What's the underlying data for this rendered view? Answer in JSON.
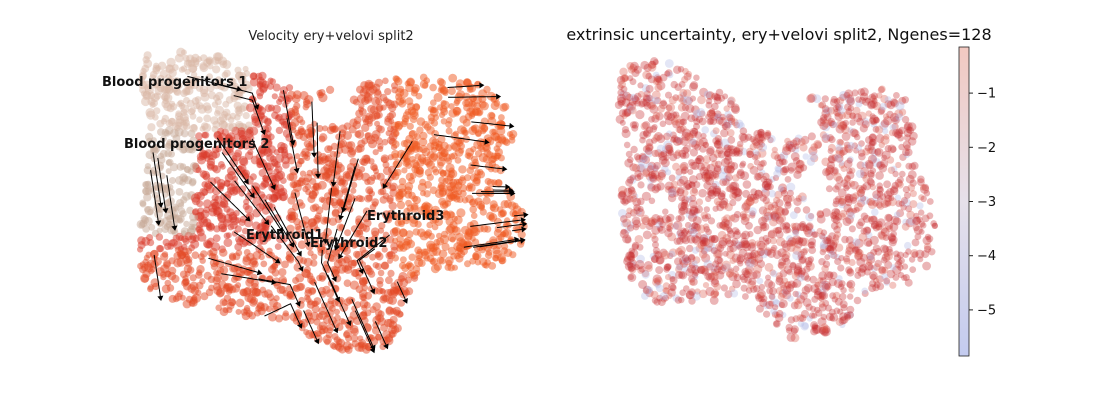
{
  "chart_data": [
    {
      "type": "scatter",
      "subtype": "velocity-stream-embedding",
      "title": "Velocity ery+velovi split2",
      "axes_visible": false,
      "grid": false,
      "point_colors": {
        "Blood progenitors 1": "#d9b8a6",
        "Blood progenitors 2": "#c8a998",
        "Erythroid1": "#d93a2a",
        "Erythroid2": "#e34a25",
        "Erythroid3": "#f05a22"
      },
      "stream_color": "#000000",
      "clusters": [
        {
          "name": "Blood progenitors 1"
        },
        {
          "name": "Blood progenitors 2"
        },
        {
          "name": "Erythroid1"
        },
        {
          "name": "Erythroid2"
        },
        {
          "name": "Erythroid3"
        }
      ]
    },
    {
      "type": "scatter",
      "subtype": "embedding-colored-by-value",
      "title": "extrinsic uncertainty, ery+velovi split2, Ngenes=128",
      "axes_visible": false,
      "grid": false,
      "colormap": "coolwarm",
      "point_color": "#c62a2f",
      "colorbar": {
        "range": [
          -5.85,
          -0.15
        ],
        "ticks": [
          -1,
          -2,
          -3,
          -4,
          -5
        ],
        "tick_labels": [
          "−1",
          "−2",
          "−3",
          "−4",
          "−5"
        ],
        "color_high": "#f2c9c1",
        "color_low": "#c3cbef"
      }
    }
  ]
}
